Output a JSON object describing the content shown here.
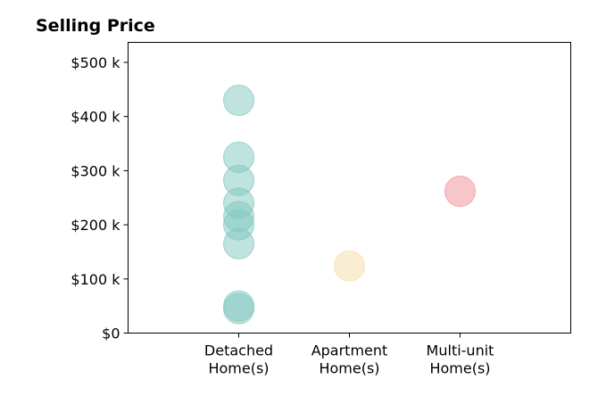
{
  "chart_data": {
    "type": "scatter",
    "title": "Selling Price",
    "xlabel": "",
    "ylabel": "",
    "categories": [
      [
        "Detached",
        "Home(s)"
      ],
      [
        "Apartment",
        "Home(s)"
      ],
      [
        "Multi-unit",
        "Home(s)"
      ]
    ],
    "yticks": [
      {
        "value": 0,
        "label": "$0"
      },
      {
        "value": 100000,
        "label": "$100 k"
      },
      {
        "value": 200000,
        "label": "$200 k"
      },
      {
        "value": 300000,
        "label": "$300 k"
      },
      {
        "value": 400000,
        "label": "$400 k"
      },
      {
        "value": 500000,
        "label": "$500 k"
      }
    ],
    "ylim": [
      0,
      537000
    ],
    "xlim": [
      -1,
      3
    ],
    "grid": false,
    "series": [
      {
        "category_index": 0,
        "color": "#7fc8bd",
        "values": [
          430000,
          325000,
          282000,
          240000,
          215000,
          200000,
          165000,
          50000,
          45000
        ]
      },
      {
        "category_index": 1,
        "color": "#f5dea6",
        "values": [
          124000
        ]
      },
      {
        "category_index": 2,
        "color": "#f28b96",
        "values": [
          262000
        ]
      }
    ]
  }
}
